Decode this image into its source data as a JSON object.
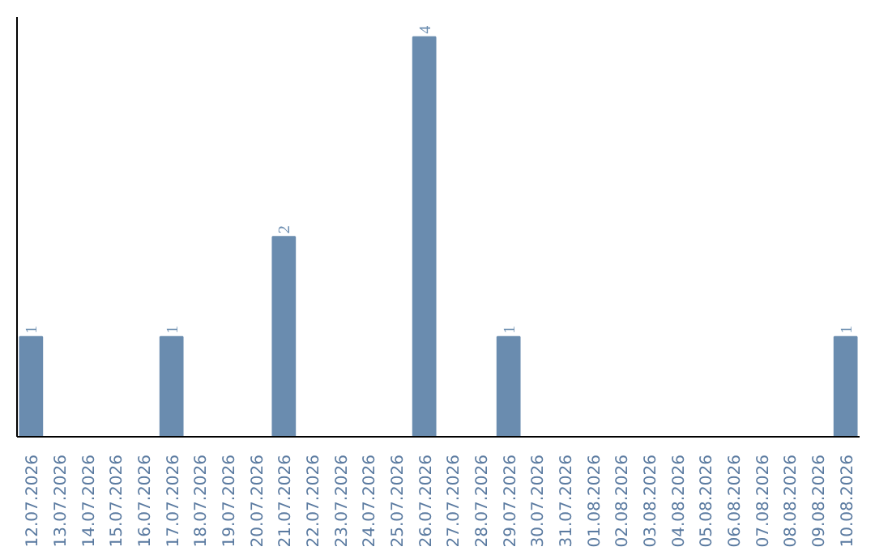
{
  "chart_data": {
    "type": "bar",
    "categories": [
      "12.07.2026",
      "13.07.2026",
      "14.07.2026",
      "15.07.2026",
      "16.07.2026",
      "17.07.2026",
      "18.07.2026",
      "19.07.2026",
      "20.07.2026",
      "21.07.2026",
      "22.07.2026",
      "23.07.2026",
      "24.07.2026",
      "25.07.2026",
      "26.07.2026",
      "27.07.2026",
      "28.07.2026",
      "29.07.2026",
      "30.07.2026",
      "31.07.2026",
      "01.08.2026",
      "02.08.2026",
      "03.08.2026",
      "04.08.2026",
      "05.08.2026",
      "06.08.2026",
      "07.08.2026",
      "08.08.2026",
      "09.08.2026",
      "10.08.2026"
    ],
    "values": [
      1,
      0,
      0,
      0,
      0,
      1,
      0,
      0,
      0,
      2,
      0,
      0,
      0,
      0,
      4,
      0,
      0,
      1,
      0,
      0,
      0,
      0,
      0,
      0,
      0,
      0,
      0,
      0,
      0,
      1
    ],
    "value_labels": [
      "1",
      null,
      null,
      null,
      null,
      "1",
      null,
      null,
      null,
      "2",
      null,
      null,
      null,
      null,
      "4",
      null,
      null,
      "1",
      null,
      null,
      null,
      null,
      null,
      null,
      null,
      null,
      null,
      null,
      null,
      "1"
    ],
    "color": "#6a8caf",
    "ylim": [
      0,
      4.2
    ],
    "tick_labels": "x"
  }
}
